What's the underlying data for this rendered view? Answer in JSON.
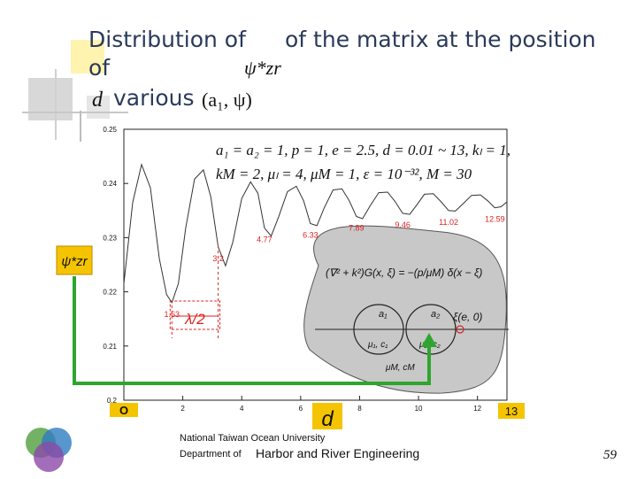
{
  "slide": {
    "title_line1a": "Distribution of",
    "title_line1b": "of the matrix at the position",
    "title_line2": "of",
    "title_line3a": "d",
    "title_line3b": "various",
    "title_sym": "ψ*zr",
    "title_pair": "(a₁, ψ)",
    "footer_univ": "National Taiwan Ocean University",
    "footer_dept_prefix": "Department of",
    "footer_dept": "Harbor and River Engineering",
    "page_number": "59"
  },
  "params": {
    "line1": "a₁ = a₂ = 1, p = 1, e = 2.5, d = 0.01 ~ 13, kₗ = 1,",
    "line2": "kM = 2, μₗ = 4, μM = 1, ε = 10⁻³², M = 30"
  },
  "annotations": {
    "left_axis_symbol": "ψ*zr",
    "half_wavelength": "λ/2",
    "x_origin": "O",
    "x_symbol": "d",
    "x_end": "13",
    "inset_equation": "(∇² + k²)G(x, ξ) = −(p/μM) δ(x − ξ)",
    "inset_a1": "a₁",
    "inset_a2": "a₂",
    "inset_source": "ξ(e, 0)",
    "inset_mu1": "μ₁, c₁",
    "inset_mu2": "μ₂, c₂",
    "inset_muM": "μM, cM"
  },
  "chart_data": {
    "type": "line",
    "xlim": [
      0,
      13
    ],
    "ylim": [
      0.2,
      0.25
    ],
    "xticks": [
      0,
      2,
      4,
      6,
      8,
      10,
      12
    ],
    "xtick_labels": [
      "0",
      "2",
      "4",
      "6",
      "8",
      "10",
      "12"
    ],
    "yticks": [
      0.2,
      0.21,
      0.22,
      0.23,
      0.24,
      0.25
    ],
    "ytick_labels": [
      "0.2",
      "0.21",
      "0.22",
      "0.23",
      "0.24",
      "0.25"
    ],
    "grid": false,
    "series": [
      {
        "color": "#333333",
        "x": [
          0,
          0.3,
          0.6,
          0.9,
          1.2,
          1.45,
          1.63,
          1.85,
          2.1,
          2.4,
          2.7,
          2.95,
          3.2,
          3.45,
          3.7,
          4.0,
          4.3,
          4.55,
          4.77,
          5.0,
          5.25,
          5.55,
          5.85,
          6.1,
          6.33,
          6.55,
          6.8,
          7.1,
          7.4,
          7.65,
          7.89,
          8.1,
          8.35,
          8.65,
          8.95,
          9.2,
          9.46,
          9.7,
          9.95,
          10.2,
          10.5,
          10.75,
          11.02,
          11.25,
          11.5,
          11.8,
          12.1,
          12.35,
          12.59,
          12.8,
          13.0
        ],
        "y": [
          0.2215,
          0.2365,
          0.2435,
          0.2392,
          0.2262,
          0.2195,
          0.218,
          0.2215,
          0.2318,
          0.2408,
          0.2425,
          0.2375,
          0.2283,
          0.2248,
          0.2292,
          0.2372,
          0.2403,
          0.2382,
          0.2318,
          0.2303,
          0.2338,
          0.2385,
          0.2395,
          0.2368,
          0.2326,
          0.2322,
          0.2355,
          0.2388,
          0.239,
          0.2368,
          0.2339,
          0.2335,
          0.2358,
          0.2383,
          0.2384,
          0.2367,
          0.2345,
          0.2343,
          0.2361,
          0.238,
          0.2381,
          0.2367,
          0.235,
          0.2349,
          0.2362,
          0.2378,
          0.2379,
          0.2368,
          0.2355,
          0.2357,
          0.2366
        ]
      }
    ],
    "annotations": [
      {
        "label": "1.63",
        "x": 1.63
      },
      {
        "label": "3.2",
        "x": 3.2
      },
      {
        "label": "4.77",
        "x": 4.77
      },
      {
        "label": "6.33",
        "x": 6.33
      },
      {
        "label": "7.89",
        "x": 7.89
      },
      {
        "label": "9.46",
        "x": 9.46
      },
      {
        "label": "11.02",
        "x": 11.02
      },
      {
        "label": "12.59",
        "x": 12.59
      }
    ]
  },
  "colors": {
    "accent_red": "#dd2222",
    "highlight_yellow": "#f5c400",
    "arrow_green": "#2ea52e",
    "inset_gray": "#c8c8c8",
    "title": "#2a3a5a"
  }
}
